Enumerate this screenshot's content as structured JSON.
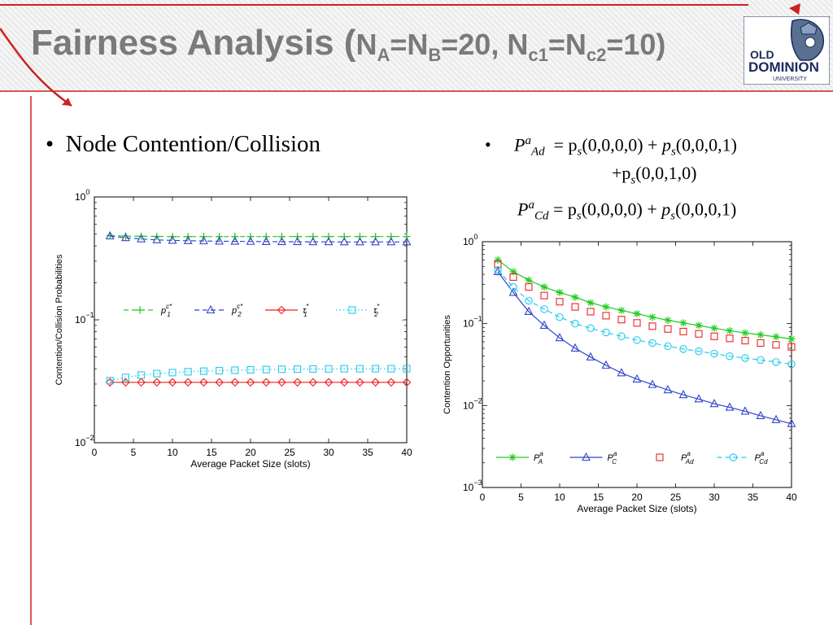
{
  "slide": {
    "title_main": "Fairness Analysis (",
    "title_na": "N",
    "title_a": "A",
    "title_eq1": "=N",
    "title_b": "B",
    "title_mid": "=20, N",
    "title_c1": "c1",
    "title_eq2": "=N",
    "title_c2": "c2",
    "title_end": "=10)",
    "left_bullet": "Node Contention/Collision",
    "bullet_symbol": "•"
  },
  "logo": {
    "line1": "OLD",
    "line2": "DOMINION",
    "line3": "UNIVERSITY"
  },
  "formulas": {
    "ad_lhs": "P",
    "ad_sup": "a",
    "ad_sub": "Ad",
    "ad_rhs1": "= p",
    "ad_rhs1_sub": "s",
    "ad_rhs1_arg": "(0,0,0,0)  +",
    "ad_rhs2": "p",
    "ad_rhs2_sub": "s",
    "ad_rhs2_arg": "(0,0,0,1)",
    "ad_line2": "+p",
    "ad_line2_sub": "s",
    "ad_line2_arg": "(0,0,1,0)",
    "cd_lhs": "P",
    "cd_sup": "a",
    "cd_sub": "Cd",
    "cd_rhs1": "= p",
    "cd_rhs1_sub": "s",
    "cd_rhs1_arg": "(0,0,0,0) +",
    "cd_rhs2": "p",
    "cd_rhs2_sub": "s",
    "cd_rhs2_arg": "(0,0,0,1)"
  },
  "chart_data": [
    {
      "type": "line",
      "yscale": "log",
      "xlabel": "Average Packet Size (slots)",
      "ylabel": "Contention/Collision Probabilities",
      "xlim": [
        0,
        40
      ],
      "ylim": [
        0.01,
        1
      ],
      "x_ticks": [
        0,
        5,
        10,
        15,
        20,
        25,
        30,
        35,
        40
      ],
      "y_ticks": [
        {
          "value": 0.01,
          "base": "10",
          "exp": "−2"
        },
        {
          "value": 0.1,
          "base": "10",
          "exp": "−1"
        },
        {
          "value": 1,
          "base": "10",
          "exp": "0"
        }
      ],
      "grid": false,
      "legend": "center",
      "x": [
        2,
        4,
        6,
        8,
        10,
        12,
        14,
        16,
        18,
        20,
        22,
        24,
        26,
        28,
        30,
        32,
        34,
        36,
        38,
        40
      ],
      "series": [
        {
          "name": "p1c*",
          "label_base": "p",
          "label_sub": "1",
          "label_sup": "c*",
          "color": "#22cc22",
          "marker": "plus",
          "line": "dashed",
          "values": [
            0.485,
            0.48,
            0.478,
            0.477,
            0.476,
            0.476,
            0.476,
            0.476,
            0.476,
            0.476,
            0.476,
            0.476,
            0.476,
            0.476,
            0.476,
            0.476,
            0.476,
            0.476,
            0.476,
            0.476
          ]
        },
        {
          "name": "p2c*",
          "label_base": "p",
          "label_sub": "2",
          "label_sup": "c*",
          "color": "#3344cc",
          "marker": "triangle",
          "line": "dashed",
          "values": [
            0.48,
            0.465,
            0.455,
            0.447,
            0.443,
            0.44,
            0.438,
            0.436,
            0.435,
            0.434,
            0.433,
            0.432,
            0.432,
            0.431,
            0.431,
            0.43,
            0.43,
            0.43,
            0.43,
            0.43
          ]
        },
        {
          "name": "τ1*",
          "label_base": "τ",
          "label_sub": "1",
          "label_sup": "*",
          "color": "#ee2222",
          "marker": "diamond",
          "line": "solid",
          "values": [
            0.031,
            0.031,
            0.031,
            0.031,
            0.031,
            0.031,
            0.031,
            0.031,
            0.031,
            0.031,
            0.031,
            0.031,
            0.031,
            0.031,
            0.031,
            0.031,
            0.031,
            0.031,
            0.031,
            0.031
          ]
        },
        {
          "name": "τ2*",
          "label_base": "τ",
          "label_sub": "2",
          "label_sup": "*",
          "color": "#22ccee",
          "marker": "square",
          "line": "dotted",
          "values": [
            0.032,
            0.034,
            0.0355,
            0.0365,
            0.0372,
            0.0378,
            0.0382,
            0.0386,
            0.0389,
            0.0392,
            0.0394,
            0.0396,
            0.0397,
            0.0398,
            0.0399,
            0.04,
            0.04,
            0.04,
            0.04,
            0.04
          ]
        }
      ]
    },
    {
      "type": "line",
      "yscale": "log",
      "xlabel": "Average Packet Size (slots)",
      "ylabel": "Contention Opportunities",
      "xlim": [
        0,
        40
      ],
      "ylim": [
        0.001,
        1
      ],
      "x_ticks": [
        0,
        5,
        10,
        15,
        20,
        25,
        30,
        35,
        40
      ],
      "y_ticks": [
        {
          "value": 0.001,
          "base": "10",
          "exp": "−3"
        },
        {
          "value": 0.01,
          "base": "10",
          "exp": "−2"
        },
        {
          "value": 0.1,
          "base": "10",
          "exp": "−1"
        },
        {
          "value": 1,
          "base": "10",
          "exp": "0"
        }
      ],
      "grid": false,
      "legend": "bottom",
      "x": [
        2,
        4,
        6,
        8,
        10,
        12,
        14,
        16,
        18,
        20,
        22,
        24,
        26,
        28,
        30,
        32,
        34,
        36,
        38,
        40
      ],
      "series": [
        {
          "name": "PAa",
          "label_base": "P",
          "label_sub": "A",
          "label_sup": "a",
          "color": "#22cc22",
          "marker": "star",
          "line": "solid",
          "values": [
            0.6,
            0.43,
            0.34,
            0.28,
            0.24,
            0.21,
            0.18,
            0.16,
            0.145,
            0.132,
            0.12,
            0.11,
            0.102,
            0.095,
            0.088,
            0.082,
            0.077,
            0.073,
            0.069,
            0.065
          ]
        },
        {
          "name": "PCa",
          "label_base": "P",
          "label_sub": "C",
          "label_sup": "a",
          "color": "#3344cc",
          "marker": "triangle",
          "line": "solid",
          "values": [
            0.43,
            0.24,
            0.14,
            0.095,
            0.067,
            0.05,
            0.039,
            0.031,
            0.025,
            0.021,
            0.018,
            0.0155,
            0.0135,
            0.012,
            0.0105,
            0.0095,
            0.0085,
            0.0075,
            0.0067,
            0.006
          ]
        },
        {
          "name": "PAda",
          "label_base": "P",
          "label_sub": "Ad",
          "label_sup": "a",
          "color": "#ee2222",
          "marker": "square",
          "line": "none",
          "values": [
            0.53,
            0.37,
            0.28,
            0.22,
            0.185,
            0.16,
            0.14,
            0.125,
            0.112,
            0.102,
            0.093,
            0.086,
            0.08,
            0.075,
            0.07,
            0.066,
            0.062,
            0.058,
            0.055,
            0.052
          ]
        },
        {
          "name": "PCda",
          "label_base": "P",
          "label_sub": "Cd",
          "label_sup": "a",
          "color": "#22ccee",
          "marker": "circle",
          "line": "dashed",
          "values": [
            0.45,
            0.28,
            0.19,
            0.15,
            0.12,
            0.1,
            0.088,
            0.078,
            0.07,
            0.063,
            0.058,
            0.053,
            0.049,
            0.046,
            0.043,
            0.04,
            0.038,
            0.036,
            0.034,
            0.032
          ]
        }
      ]
    }
  ]
}
